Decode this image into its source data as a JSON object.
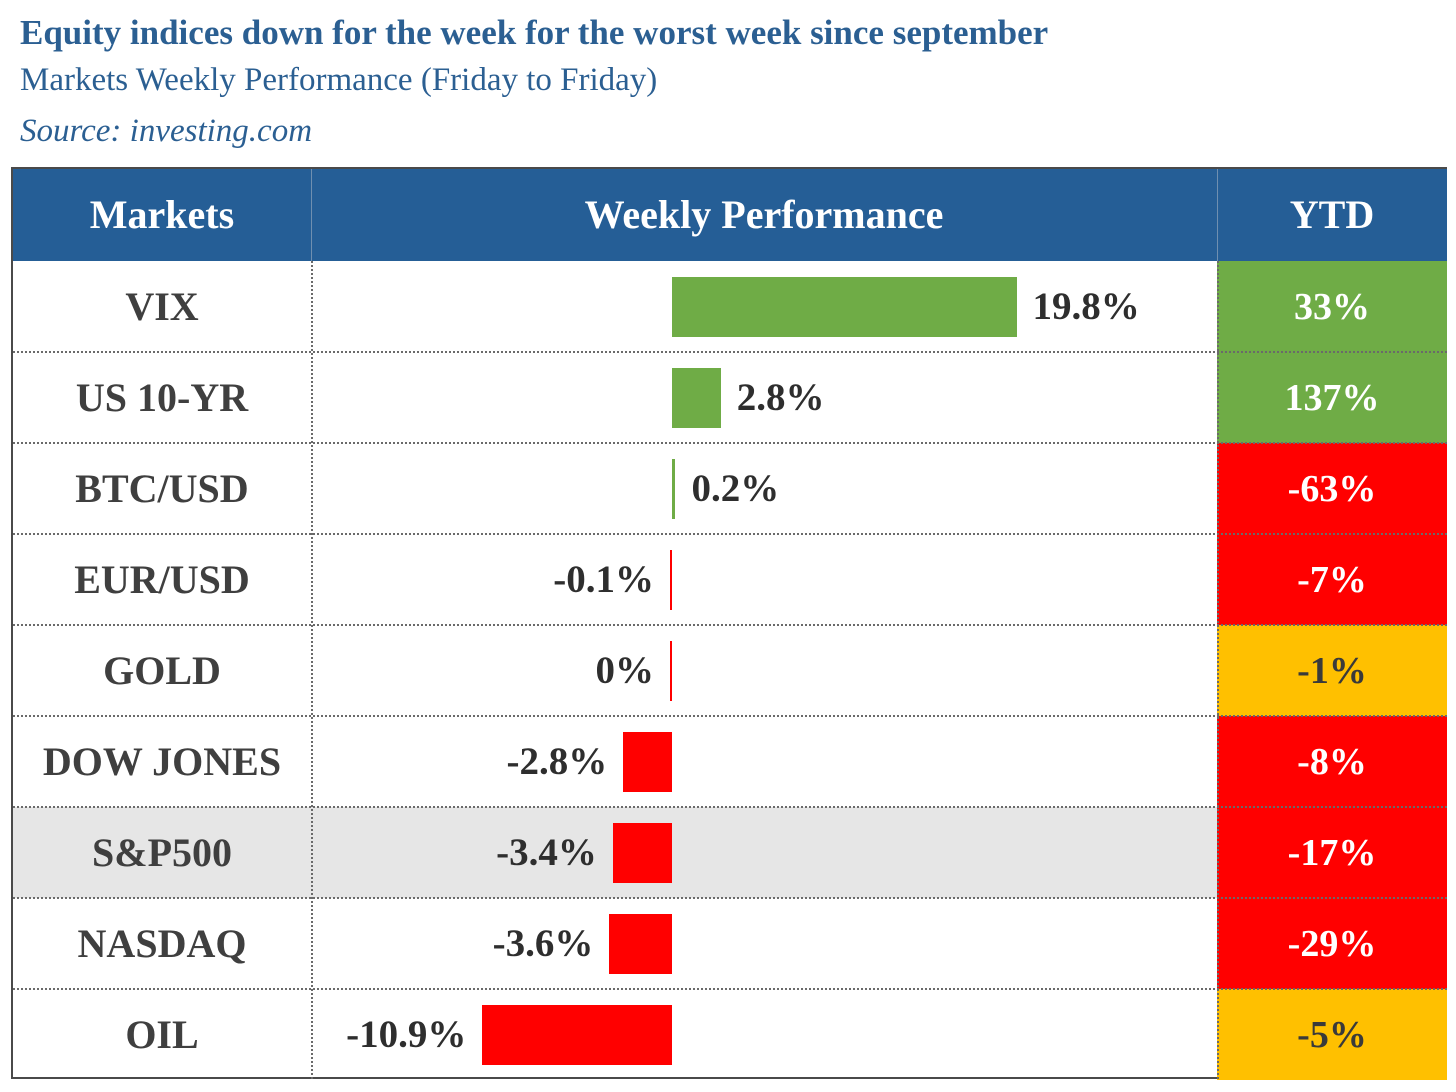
{
  "header": {
    "title": "Equity indices down for the week for the worst week since september",
    "subtitle": "Markets Weekly Performance (Friday to Friday)",
    "source": "Source: investing.com"
  },
  "table": {
    "columns": [
      "Markets",
      "Weekly Performance",
      "YTD"
    ]
  },
  "colors": {
    "header_bg": "#255e96",
    "title_text": "#2b5f92",
    "positive": "#6fac46",
    "negative": "#ff0000",
    "amber": "#ffc000",
    "row_highlight": "#e6e6e6"
  },
  "chart_data": {
    "type": "bar",
    "orientation": "horizontal",
    "title": "Equity indices down for the week for the worst week since september",
    "subtitle": "Markets Weekly Performance (Friday to Friday)",
    "xlim": [
      -13.0,
      23.5
    ],
    "categories": [
      "VIX",
      "US 10-YR",
      "BTC/USD",
      "EUR/USD",
      "GOLD",
      "DOW JONES",
      "S&P500",
      "NASDAQ",
      "OIL"
    ],
    "values": [
      19.8,
      2.8,
      0.2,
      -0.1,
      0.0,
      -2.8,
      -3.4,
      -3.6,
      -10.9
    ],
    "value_labels": [
      "19.8%",
      "2.8%",
      "0.2%",
      "-0.1%",
      "0%",
      "-2.8%",
      "-3.4%",
      "-3.6%",
      "-10.9%"
    ],
    "ytd": [
      "33%",
      "137%",
      "-63%",
      "-7%",
      "-1%",
      "-8%",
      "-17%",
      "-29%",
      "-5%"
    ],
    "ytd_status": [
      "positive",
      "positive",
      "negative",
      "negative",
      "amber",
      "negative",
      "negative",
      "negative",
      "amber"
    ],
    "highlight_row": "S&P500"
  }
}
